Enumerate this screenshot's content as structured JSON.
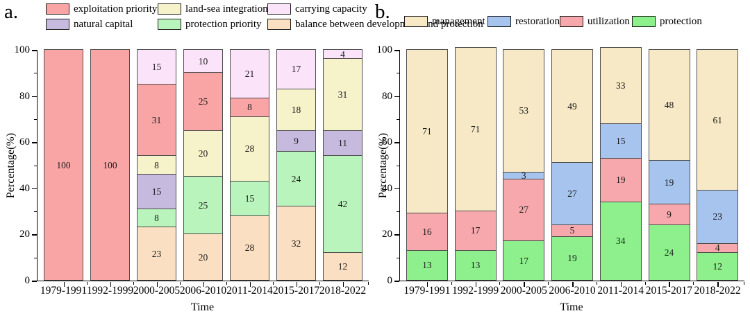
{
  "figure": {
    "background": "#ffffff",
    "axis_color": "#000000",
    "segment_border_color": "#4d4d4d"
  },
  "chart_data": [
    {
      "type": "bar",
      "stacked": true,
      "panel_label": "a.",
      "title": "",
      "xlabel": "Time",
      "ylabel": "Percentage(%)",
      "ylim": [
        0,
        100
      ],
      "yticks_major": [
        0,
        20,
        40,
        60,
        80,
        100
      ],
      "yticks_minor": [
        10,
        30,
        50,
        70,
        90
      ],
      "grid": false,
      "legend_position": "top",
      "categories": [
        "1979-1991",
        "1992-1999",
        "2000-2005",
        "2006-2010",
        "2011-2014",
        "2015-2017",
        "2018-2022"
      ],
      "series": [
        {
          "name": "exploitation priority",
          "color": "#faa5a5",
          "values": [
            100,
            100,
            31,
            25,
            8,
            0,
            0
          ]
        },
        {
          "name": "land-sea integration",
          "color": "#f6f2ca",
          "values": [
            0,
            0,
            8,
            20,
            28,
            18,
            31
          ]
        },
        {
          "name": "carrying capacity",
          "color": "#fbe3fa",
          "values": [
            0,
            0,
            15,
            10,
            21,
            17,
            4
          ]
        },
        {
          "name": "natural capital",
          "color": "#c6bade",
          "values": [
            0,
            0,
            15,
            0,
            0,
            9,
            11
          ]
        },
        {
          "name": "protection priority",
          "color": "#b9f4bc",
          "values": [
            0,
            0,
            8,
            25,
            15,
            24,
            42
          ]
        },
        {
          "name": "balance between development and protection",
          "color": "#fadfc2",
          "values": [
            0,
            0,
            23,
            20,
            28,
            32,
            12
          ]
        }
      ],
      "stack_order_bottom_to_top": [
        "balance between development and protection",
        "protection priority",
        "natural capital",
        "land-sea integration",
        "exploitation priority",
        "carrying capacity"
      ]
    },
    {
      "type": "bar",
      "stacked": true,
      "panel_label": "b.",
      "title": "",
      "xlabel": "Time",
      "ylabel": "Percentage(%)",
      "ylim": [
        0,
        100
      ],
      "yticks_major": [
        0,
        20,
        40,
        60,
        80,
        100
      ],
      "yticks_minor": [
        10,
        30,
        50,
        70,
        90
      ],
      "grid": false,
      "legend_position": "top",
      "categories": [
        "1979-1991",
        "1992-1999",
        "2000-2005",
        "2006-2010",
        "2011-2014",
        "2015-2017",
        "2018-2022"
      ],
      "series": [
        {
          "name": "management",
          "color": "#f7e9c6",
          "values": [
            71,
            71,
            53,
            49,
            33,
            48,
            61
          ]
        },
        {
          "name": "restoration",
          "color": "#a6c4ee",
          "values": [
            0,
            0,
            3,
            27,
            15,
            19,
            23
          ]
        },
        {
          "name": "utilization",
          "color": "#f6a8ac",
          "values": [
            16,
            17,
            27,
            5,
            19,
            9,
            4
          ]
        },
        {
          "name": "protection",
          "color": "#8ef08d",
          "values": [
            13,
            13,
            17,
            19,
            34,
            24,
            12
          ]
        }
      ],
      "stack_order_bottom_to_top": [
        "protection",
        "utilization",
        "restoration",
        "management"
      ]
    }
  ]
}
